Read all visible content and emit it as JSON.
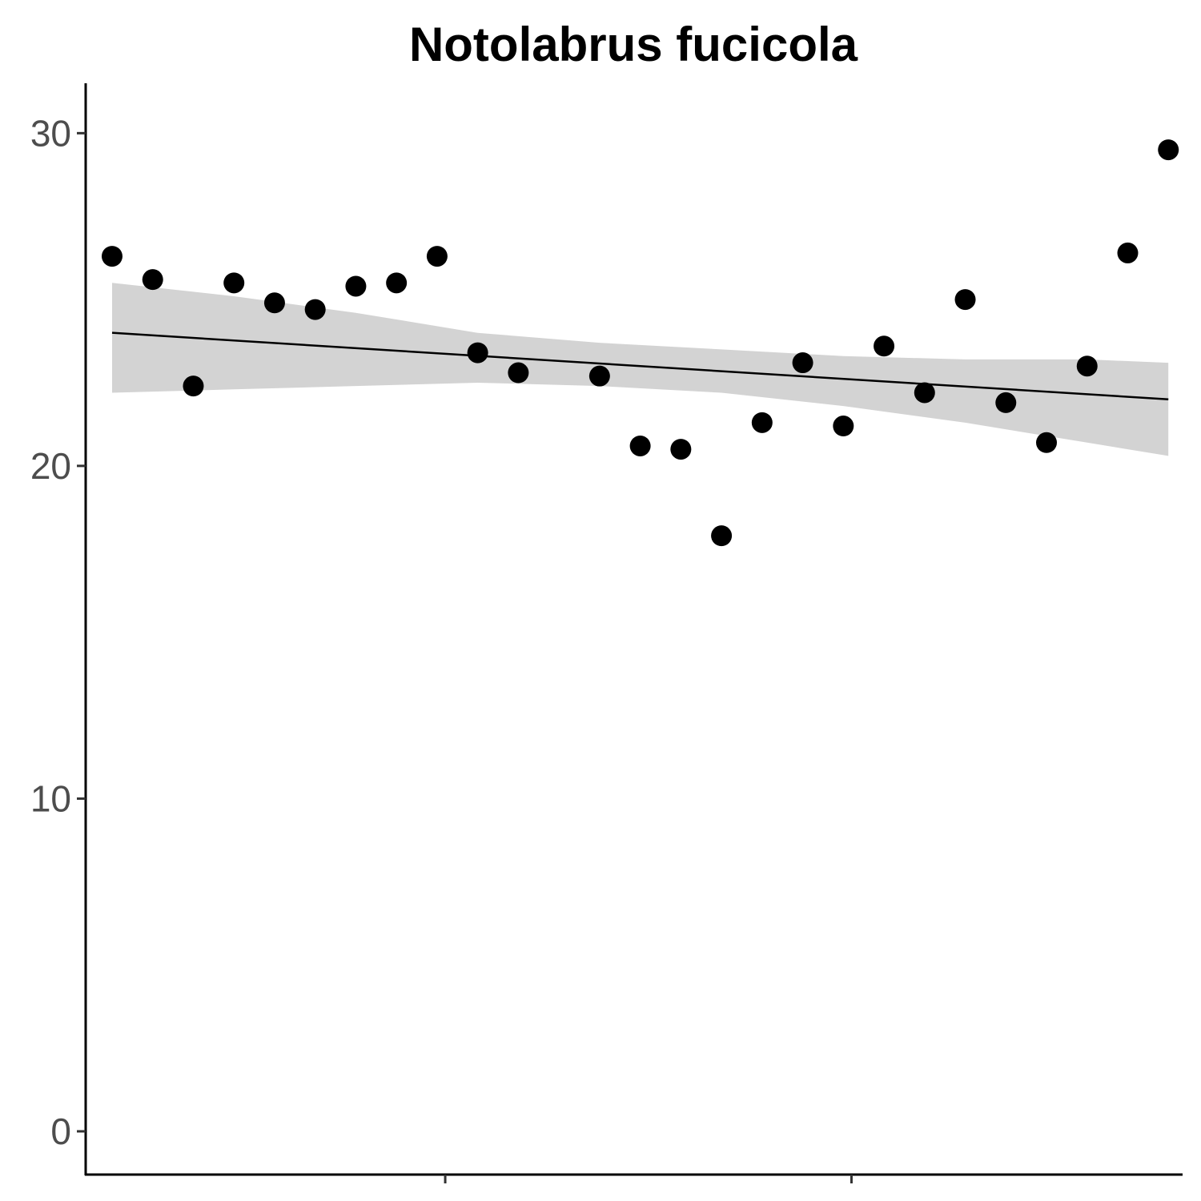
{
  "chart_data": {
    "type": "scatter",
    "title": "Notolabrus fucicola",
    "xlabel": "",
    "ylabel": "",
    "ylim": [
      -1.3,
      31.5
    ],
    "xlim": [
      0.35,
      27.35
    ],
    "y_ticks": [
      0,
      10,
      20,
      30
    ],
    "y_tick_labels": [
      "0",
      "10",
      "20",
      "30"
    ],
    "x_ticks": [
      9.2,
      19.2
    ],
    "x_tick_labels": [
      "",
      ""
    ],
    "grid": false,
    "legend": "none",
    "colors": {
      "points": "#000000",
      "fit": "#000000",
      "ci_band": "#d3d3d3",
      "tick_label": "#4d4d4d"
    },
    "points": [
      {
        "x": 1,
        "y": 26.3
      },
      {
        "x": 2,
        "y": 25.6
      },
      {
        "x": 3,
        "y": 22.4
      },
      {
        "x": 4,
        "y": 25.5
      },
      {
        "x": 5,
        "y": 24.9
      },
      {
        "x": 6,
        "y": 24.7
      },
      {
        "x": 7,
        "y": 25.4
      },
      {
        "x": 8,
        "y": 25.5
      },
      {
        "x": 9,
        "y": 26.3
      },
      {
        "x": 10,
        "y": 23.4
      },
      {
        "x": 11,
        "y": 22.8
      },
      {
        "x": 13,
        "y": 22.7
      },
      {
        "x": 14,
        "y": 20.6
      },
      {
        "x": 15,
        "y": 20.5
      },
      {
        "x": 16,
        "y": 17.9
      },
      {
        "x": 17,
        "y": 21.3
      },
      {
        "x": 18,
        "y": 23.1
      },
      {
        "x": 19,
        "y": 21.2
      },
      {
        "x": 20,
        "y": 23.6
      },
      {
        "x": 21,
        "y": 22.2
      },
      {
        "x": 22,
        "y": 25.0
      },
      {
        "x": 23,
        "y": 21.9
      },
      {
        "x": 24,
        "y": 20.7
      },
      {
        "x": 25,
        "y": 23.0
      },
      {
        "x": 26,
        "y": 26.4
      },
      {
        "x": 27,
        "y": 29.5
      }
    ],
    "fit": {
      "method": "linear",
      "x": [
        1,
        27
      ],
      "y": [
        24.0,
        22.0
      ]
    },
    "ci_band": {
      "x": [
        1,
        4,
        7,
        10,
        13,
        16,
        19,
        22,
        25,
        27
      ],
      "lower": [
        22.2,
        22.3,
        22.4,
        22.5,
        22.4,
        22.2,
        21.8,
        21.3,
        20.7,
        20.3
      ],
      "upper": [
        25.5,
        25.1,
        24.6,
        24.0,
        23.7,
        23.5,
        23.3,
        23.2,
        23.2,
        23.1
      ]
    }
  }
}
